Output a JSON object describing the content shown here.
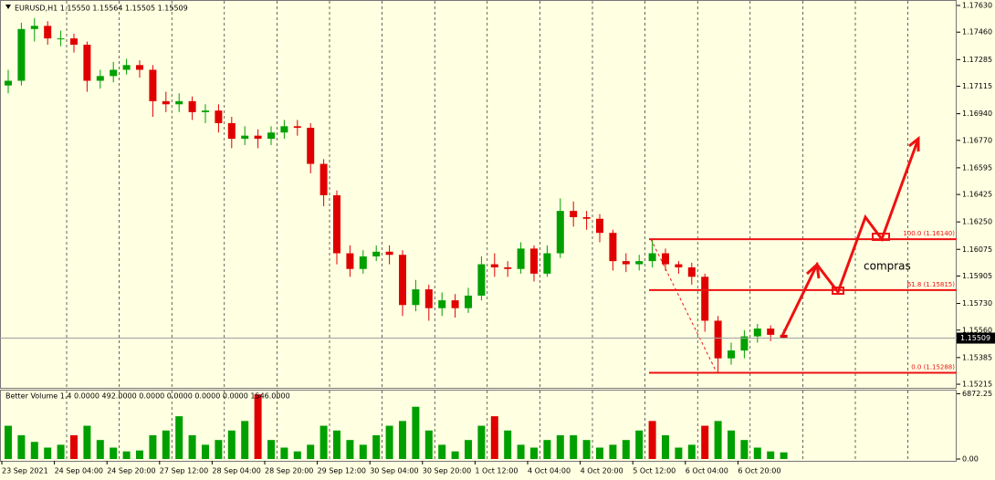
{
  "chart_data": {
    "type": "candlestick",
    "title": "EURUSD,H1  1.15550 1.15564 1.15505 1.15509",
    "categories": [
      "23 Sep 2021",
      null,
      null,
      null,
      "24 Sep 04:00",
      null,
      null,
      null,
      "24 Sep 20:00",
      null,
      null,
      null,
      "27 Sep 12:00",
      null,
      null,
      null,
      "28 Sep 04:00",
      null,
      null,
      null,
      "28 Sep 20:00",
      null,
      null,
      null,
      "29 Sep 12:00",
      null,
      null,
      null,
      "30 Sep 04:00",
      null,
      null,
      null,
      "30 Sep 20:00",
      null,
      null,
      null,
      "1 Oct 12:00",
      null,
      null,
      null,
      "4 Oct 04:00",
      null,
      null,
      null,
      "4 Oct 20:00",
      null,
      null,
      null,
      "5 Oct 12:00",
      null,
      null,
      null,
      "6 Oct 04:00",
      null,
      null,
      null,
      "6 Oct 20:00",
      null,
      null,
      null
    ],
    "open": [
      1.1712,
      1.1715,
      1.1748,
      1.175,
      1.1742,
      1.1742,
      1.1738,
      1.1715,
      1.1718,
      1.1722,
      1.1725,
      1.1722,
      1.1702,
      1.17,
      1.1702,
      1.1695,
      1.1696,
      1.1688,
      1.1678,
      1.168,
      1.1678,
      1.1682,
      1.1686,
      1.1685,
      1.1662,
      1.1642,
      1.1605,
      1.1595,
      1.1603,
      1.1606,
      1.1604,
      1.1572,
      1.1582,
      1.157,
      1.1575,
      1.157,
      1.1578,
      1.1598,
      1.1596,
      1.1595,
      1.1608,
      1.1592,
      1.1605,
      1.1632,
      1.1628,
      1.1627,
      1.1618,
      1.16,
      1.1598,
      1.16,
      1.1605,
      1.1598,
      1.1596,
      1.159,
      1.1562,
      1.1538,
      1.1543,
      1.1552,
      1.1557,
      1.1553
    ],
    "high": [
      1.1722,
      1.1752,
      1.1755,
      1.1753,
      1.1747,
      1.1745,
      1.174,
      1.1722,
      1.1727,
      1.1729,
      1.1728,
      1.1725,
      1.1708,
      1.1707,
      1.1705,
      1.17,
      1.17,
      1.1692,
      1.1686,
      1.1684,
      1.1686,
      1.169,
      1.169,
      1.1688,
      1.1665,
      1.1645,
      1.161,
      1.1607,
      1.161,
      1.161,
      1.1607,
      1.1588,
      1.1585,
      1.158,
      1.1579,
      1.1583,
      1.1603,
      1.1605,
      1.16,
      1.1612,
      1.161,
      1.161,
      1.164,
      1.1638,
      1.1632,
      1.163,
      1.162,
      1.1605,
      1.1604,
      1.1614,
      1.1608,
      1.16,
      1.1599,
      1.1592,
      1.1565,
      1.1548,
      1.1556,
      1.156,
      1.1559,
      1.15564
    ],
    "low": [
      1.1707,
      1.1712,
      1.174,
      1.1738,
      1.1737,
      1.1733,
      1.1708,
      1.171,
      1.1714,
      1.1719,
      1.1717,
      1.1692,
      1.1695,
      1.1695,
      1.169,
      1.1688,
      1.1682,
      1.1672,
      1.1674,
      1.1672,
      1.1674,
      1.1678,
      1.168,
      1.1656,
      1.1635,
      1.1598,
      1.159,
      1.1592,
      1.16,
      1.1598,
      1.1565,
      1.1568,
      1.1562,
      1.1565,
      1.1564,
      1.1567,
      1.1575,
      1.159,
      1.159,
      1.1592,
      1.1587,
      1.159,
      1.1602,
      1.1622,
      1.162,
      1.1612,
      1.1594,
      1.1593,
      1.1594,
      1.1596,
      1.1594,
      1.1592,
      1.1585,
      1.1555,
      1.1529,
      1.1534,
      1.1538,
      1.1548,
      1.1549,
      1.15505
    ],
    "close": [
      1.1715,
      1.1748,
      1.175,
      1.1742,
      1.1742,
      1.1738,
      1.1715,
      1.1718,
      1.1722,
      1.1725,
      1.1722,
      1.1702,
      1.17,
      1.1702,
      1.1695,
      1.1696,
      1.1688,
      1.1678,
      1.168,
      1.1678,
      1.1682,
      1.1686,
      1.1685,
      1.1662,
      1.1642,
      1.1605,
      1.1595,
      1.1603,
      1.1606,
      1.1604,
      1.1572,
      1.1582,
      1.157,
      1.1575,
      1.157,
      1.1578,
      1.1598,
      1.1596,
      1.1595,
      1.1608,
      1.1592,
      1.1605,
      1.1632,
      1.1628,
      1.1627,
      1.1618,
      1.16,
      1.1598,
      1.16,
      1.1605,
      1.1598,
      1.1596,
      1.159,
      1.1562,
      1.1538,
      1.1543,
      1.1552,
      1.1557,
      1.1553,
      1.15509
    ],
    "up_color": "#00a000",
    "down_color": "#e00000",
    "ylim": [
      1.15192,
      1.17665
    ],
    "yticks": [
      {
        "value": 1.1763,
        "label": "1.17630"
      },
      {
        "value": 1.1746,
        "label": "1.17460"
      },
      {
        "value": 1.17285,
        "label": "1.17285"
      },
      {
        "value": 1.17115,
        "label": "1.17115"
      },
      {
        "value": 1.1694,
        "label": "1.16940"
      },
      {
        "value": 1.1677,
        "label": "1.16770"
      },
      {
        "value": 1.16595,
        "label": "1.16595"
      },
      {
        "value": 1.16425,
        "label": "1.16425"
      },
      {
        "value": 1.1625,
        "label": "1.16250"
      },
      {
        "value": 1.16075,
        "label": "1.16075"
      },
      {
        "value": 1.15905,
        "label": "1.15905"
      },
      {
        "value": 1.1573,
        "label": "1.15730"
      },
      {
        "value": 1.1556,
        "label": "1.15560"
      },
      {
        "value": 1.15385,
        "label": "1.15385"
      },
      {
        "value": 1.15215,
        "label": "1.15215"
      }
    ],
    "fib_levels": [
      {
        "value": 1.1614,
        "label": "100.0 (1.16140)"
      },
      {
        "value": 1.15815,
        "label": "61.8 (1.15815)"
      },
      {
        "value": 1.15288,
        "label": "0.0 (1.15288)"
      }
    ],
    "fib_color": "#ee1111",
    "annotation": "compras",
    "volume_title": "Better Volume 1.4 0.0000 492.0000 0.0000 0.0000 0.0000 0.0000 1546.0000",
    "volume": [
      3500,
      2500,
      1800,
      1200,
      1500,
      2500,
      3500,
      2000,
      1200,
      800,
      900,
      2500,
      3000,
      4500,
      2500,
      1500,
      2000,
      3000,
      4000,
      6800,
      2000,
      1200,
      800,
      1500,
      3500,
      3000,
      2000,
      1500,
      2500,
      3500,
      4000,
      5500,
      3000,
      1500,
      800,
      2000,
      3500,
      4500,
      3000,
      1500,
      1200,
      2000,
      2500,
      2500,
      2000,
      1200,
      1500,
      2000,
      3000,
      4000,
      2500,
      1200,
      1500,
      3500,
      4000,
      3000,
      2000,
      1200,
      800,
      700
    ],
    "volume_colors": [
      "#00a000",
      "#00a000",
      "#00a000",
      "#00a000",
      "#00a000",
      "#e00000",
      "#00a000",
      "#00a000",
      "#00a000",
      "#00a000",
      "#00a000",
      "#00a000",
      "#00a000",
      "#00a000",
      "#00a000",
      "#00a000",
      "#00a000",
      "#00a000",
      "#00a000",
      "#e00000",
      "#00a000",
      "#00a000",
      "#00a000",
      "#00a000",
      "#00a000",
      "#00a000",
      "#00a000",
      "#00a000",
      "#00a000",
      "#00a000",
      "#00a000",
      "#00a000",
      "#00a000",
      "#00a000",
      "#00a000",
      "#00a000",
      "#00a000",
      "#e00000",
      "#00a000",
      "#00a000",
      "#00a000",
      "#00a000",
      "#00a000",
      "#00a000",
      "#00a000",
      "#00a000",
      "#00a000",
      "#00a000",
      "#00a000",
      "#e00000",
      "#00a000",
      "#00a000",
      "#00a000",
      "#e00000",
      "#00a000",
      "#00a000",
      "#00a000",
      "#00a000",
      "#00a000",
      "#00a000"
    ],
    "vlim": [
      0,
      7200
    ],
    "vticks": [
      6872.25,
      {
        "value": 0,
        "label": "0.00"
      }
    ]
  }
}
